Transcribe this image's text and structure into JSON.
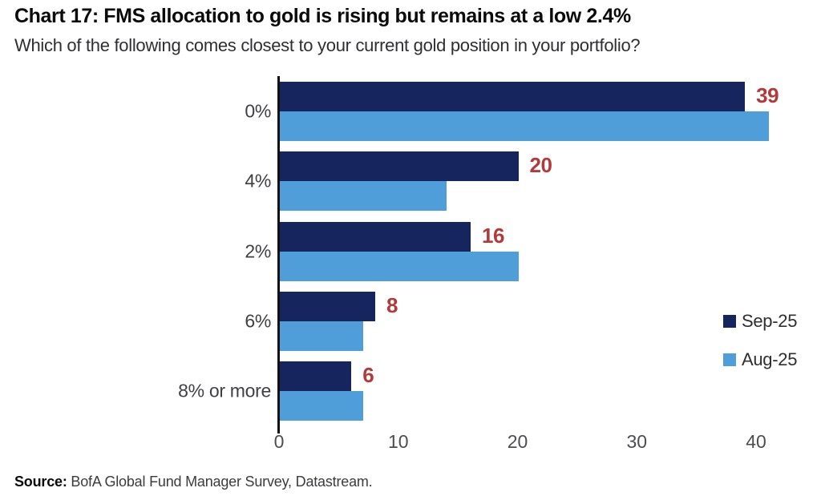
{
  "header": {
    "title": "Chart 17: FMS allocation to gold is rising but remains at a low 2.4%",
    "subtitle": "Which of the following comes closest to your current gold position in your portfolio?"
  },
  "footer": {
    "source_label": "Source:",
    "source_text": " BofA Global Fund Manager Survey, Datastream."
  },
  "colors": {
    "sep_25": "#17255e",
    "aug_25": "#4f9ed9",
    "value_label": "#b23a3b",
    "axis": "#111111"
  },
  "chart_data": {
    "type": "bar",
    "orientation": "horizontal",
    "title": "Chart 17: FMS allocation to gold is rising but remains at a low 2.4%",
    "subtitle": "Which of the following comes closest to your current gold position in your portfolio?",
    "categories": [
      "0%",
      "4%",
      "2%",
      "6%",
      "8% or more"
    ],
    "series": [
      {
        "name": "Sep-25",
        "color": "#17255e",
        "values": [
          39,
          20,
          16,
          8,
          6
        ]
      },
      {
        "name": "Aug-25",
        "color": "#4f9ed9",
        "values": [
          41,
          14,
          20,
          7,
          7
        ]
      }
    ],
    "value_labels": {
      "on_series": "Sep-25",
      "values": [
        "39",
        "20",
        "16",
        "8",
        "6"
      ],
      "color": "#b23a3b"
    },
    "xticks": [
      "0",
      "10",
      "20",
      "30",
      "40"
    ],
    "xtick_values": [
      0,
      10,
      20,
      30,
      40
    ],
    "xlim": [
      0,
      44.5
    ],
    "grid": false,
    "legend_position": "right",
    "source": "Source: BofA Global Fund Manager Survey, Datastream."
  }
}
